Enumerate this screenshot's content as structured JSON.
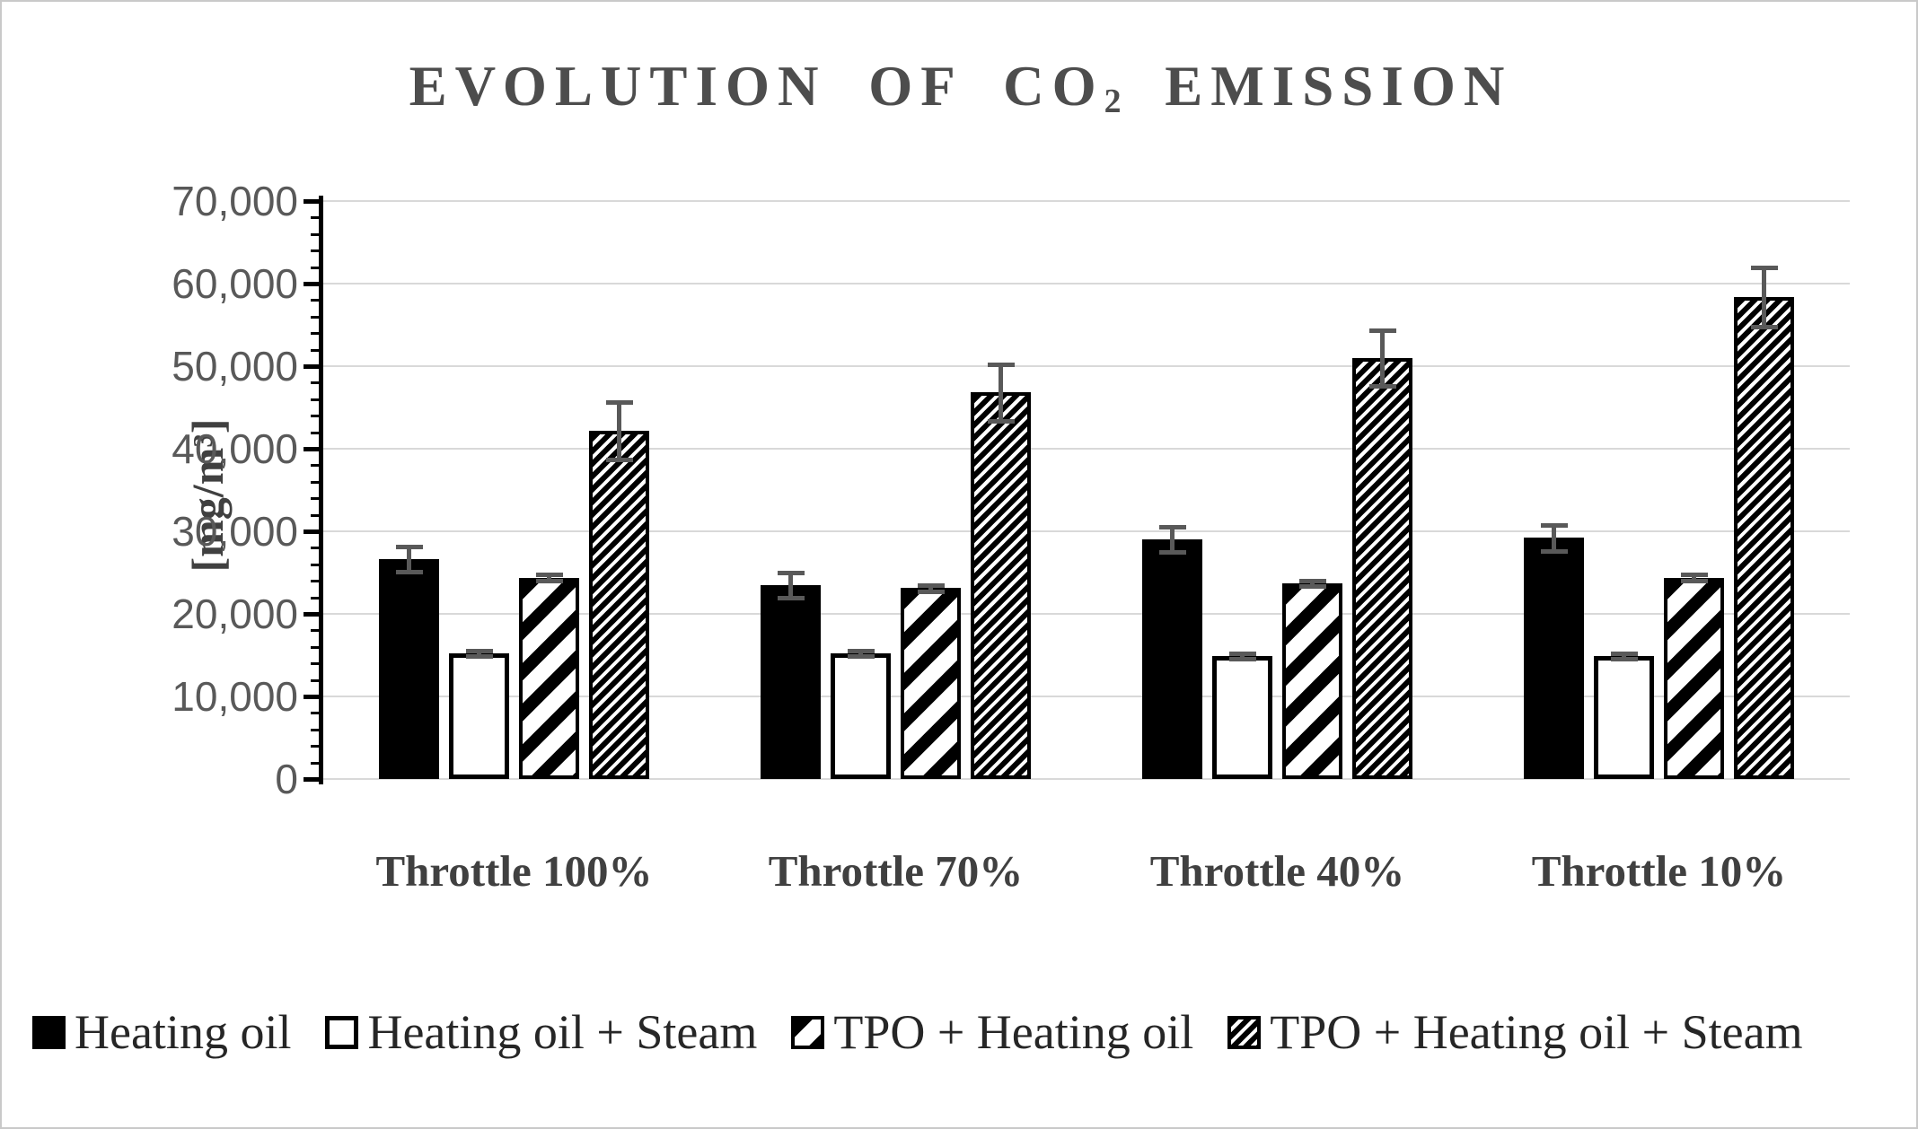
{
  "title": {
    "prefix": "EVOLUTION OF CO",
    "sub": "2",
    "suffix": " EMISSION"
  },
  "y_axis": {
    "unit_prefix": "[mg/m",
    "unit_sup": "3",
    "unit_suffix": "]",
    "tick_labels": [
      "70,000",
      "60,000",
      "50,000",
      "40,000",
      "30,000",
      "20,000",
      "10,000",
      "0"
    ]
  },
  "chart_data": {
    "type": "bar",
    "title": "EVOLUTION OF CO2 EMISSION",
    "ylabel": "[mg/m3]",
    "ylim": [
      0,
      70000
    ],
    "y_major_step": 10000,
    "y_minor_step": 2000,
    "grid": true,
    "legend_position": "bottom",
    "categories": [
      "Throttle 100%",
      "Throttle 70%",
      "Throttle 40%",
      "Throttle 10%"
    ],
    "series": [
      {
        "name": "Heating oil",
        "pattern": "solid-black",
        "values": [
          26600,
          23500,
          29000,
          29200
        ],
        "errors": [
          1500,
          1500,
          1500,
          1550
        ]
      },
      {
        "name": "Heating oil + Steam",
        "pattern": "white",
        "values": [
          15200,
          15200,
          14900,
          14900
        ],
        "errors": [
          300,
          300,
          300,
          300
        ]
      },
      {
        "name": "TPO + Heating oil",
        "pattern": "wide-diagonal",
        "values": [
          24400,
          23100,
          23700,
          24400
        ],
        "errors": [
          350,
          350,
          350,
          350
        ]
      },
      {
        "name": "TPO + Heating oil + Steam",
        "pattern": "dense-diagonal",
        "values": [
          42200,
          46800,
          51000,
          58400
        ],
        "errors": [
          3500,
          3400,
          3400,
          3600
        ]
      }
    ]
  },
  "colors": {
    "title_text": "#4d4d4d",
    "axis_text": "#595959",
    "gridline": "#d9d9d9",
    "error_bar": "#595959",
    "bar_black": "#000000",
    "bar_white": "#ffffff"
  }
}
